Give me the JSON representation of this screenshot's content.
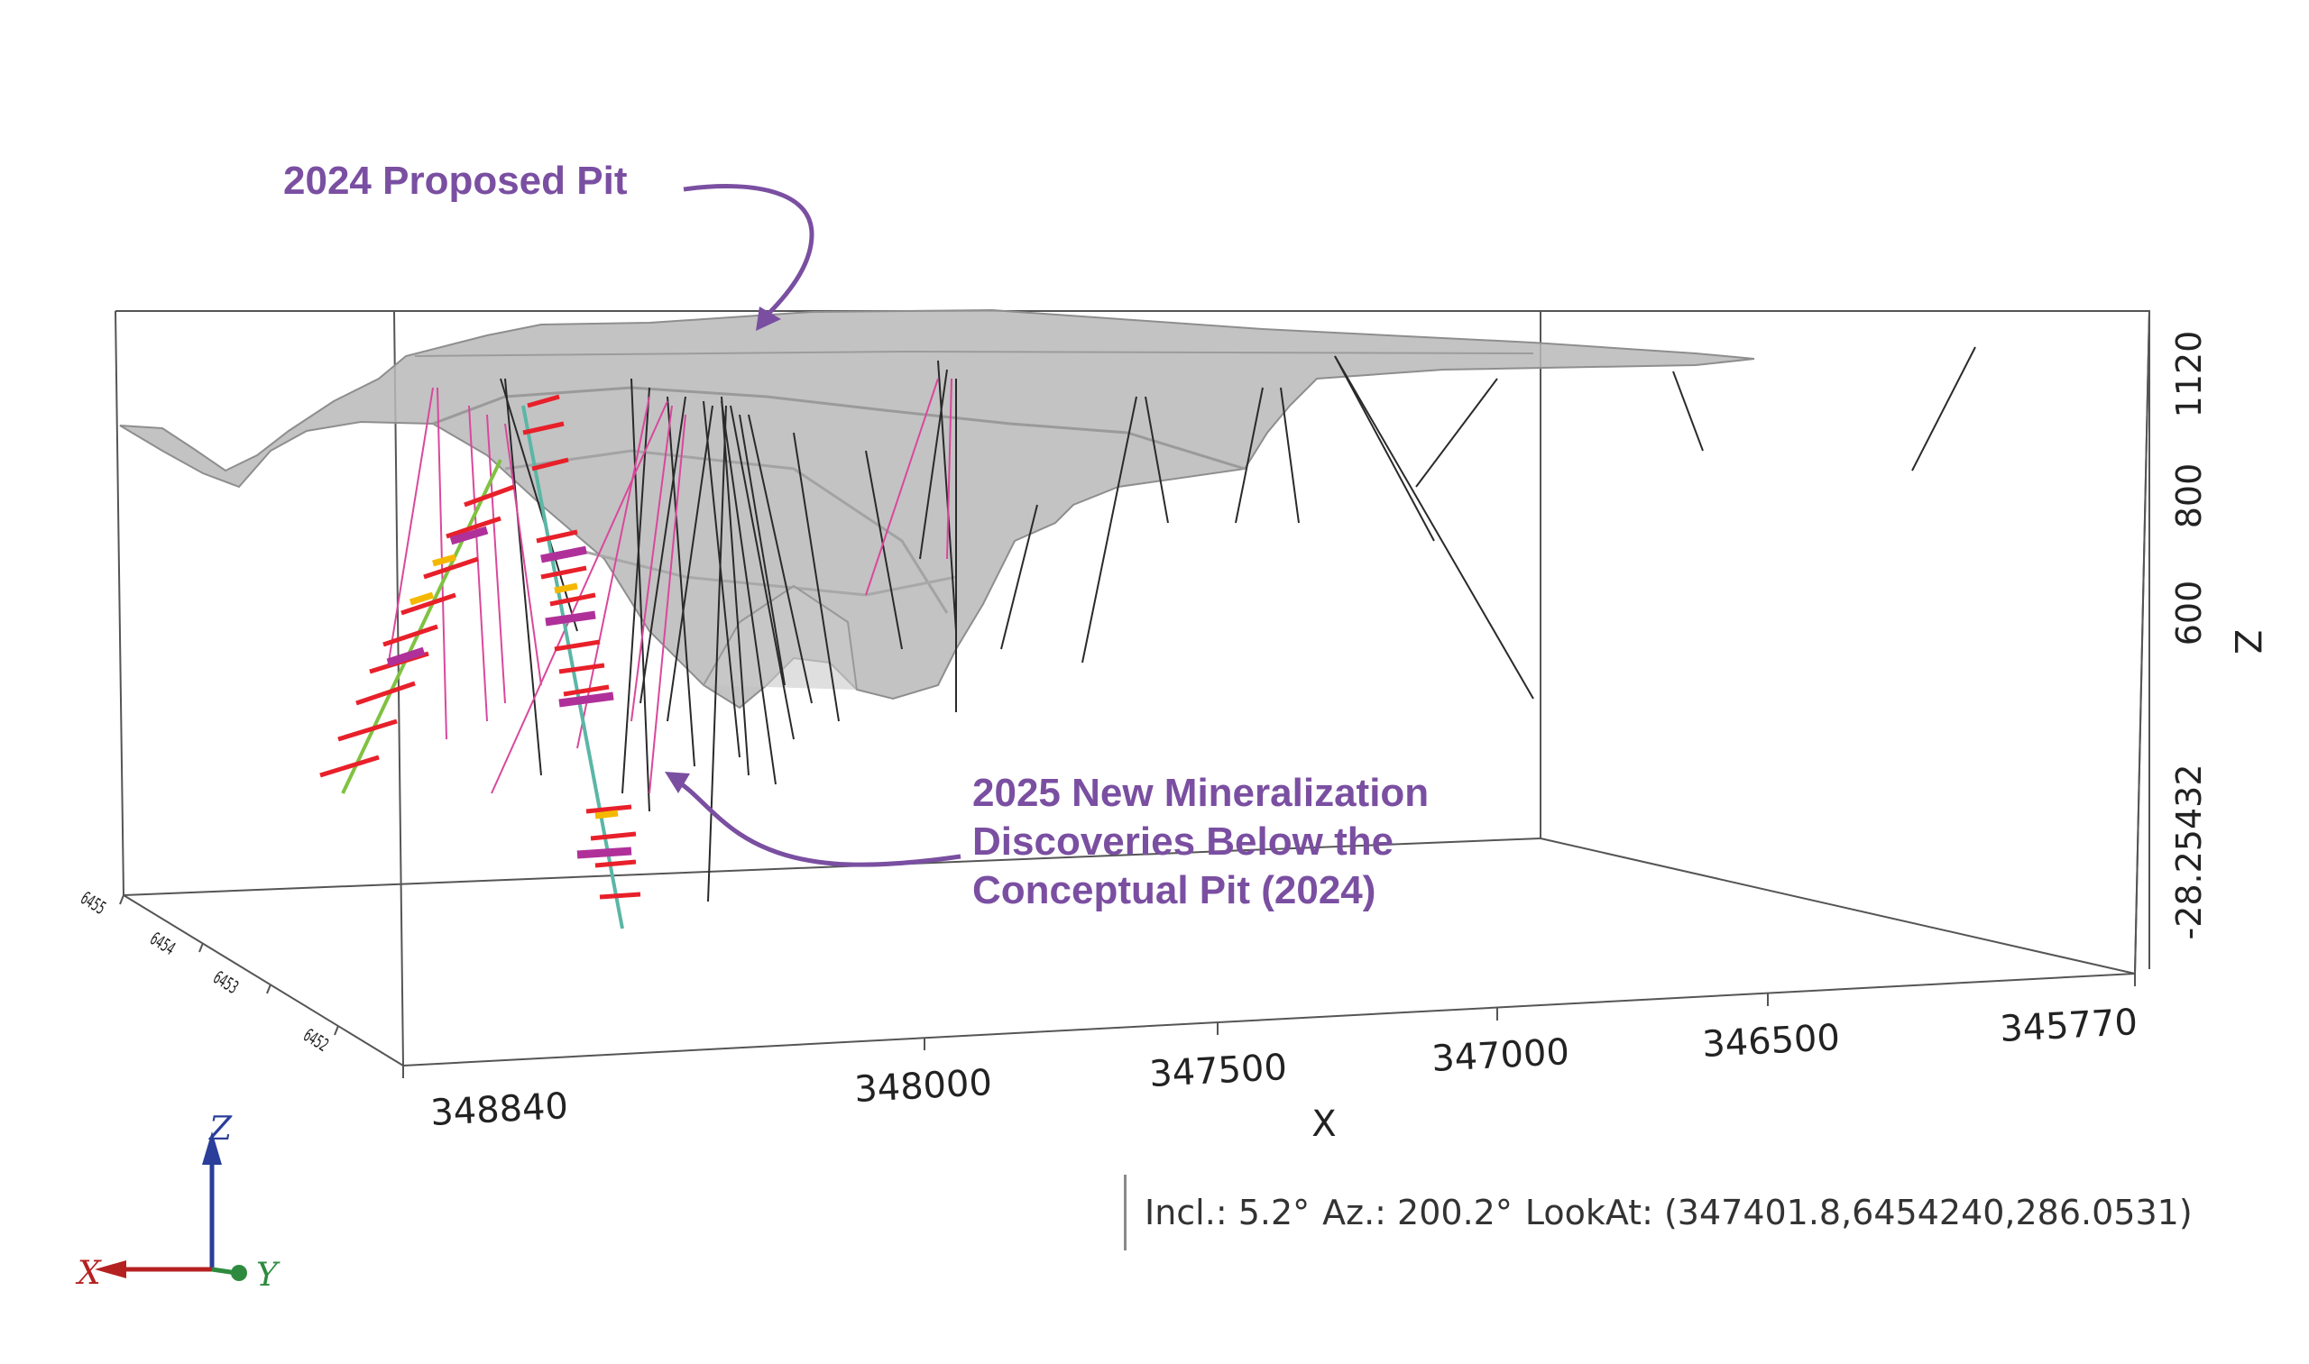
{
  "annotations": {
    "pit_label": "2024 Proposed Pit",
    "discovery_label": [
      "2025 New Mineralization",
      "Discoveries Below the",
      "Conceptual Pit (2024)"
    ]
  },
  "axes": {
    "x_title": "X",
    "z_title": "Z",
    "x_ticks": [
      "348840",
      "348000",
      "347500",
      "347000",
      "346500",
      "345770"
    ],
    "z_ticks": [
      "1120",
      "800",
      "600",
      "-28.25432"
    ],
    "y_ticks": [
      "6455",
      "6454",
      "6453",
      "6452"
    ]
  },
  "triad": {
    "x": "X",
    "y": "Y",
    "z": "Z"
  },
  "status": {
    "incl": "Incl.: 5.2°",
    "az": "Az.: 200.2°",
    "lookat": "LookAt: (347401.8,6454240,286.0531)"
  },
  "colors": {
    "annotation": "#7a4fa1",
    "pit_fill": "#b9b9b9",
    "drill_black": "#2a2a2a",
    "drill_pink": "#d9489c",
    "assay_red": "#e8202a",
    "assay_magenta": "#b0309a",
    "assay_yellow": "#f5b800"
  }
}
